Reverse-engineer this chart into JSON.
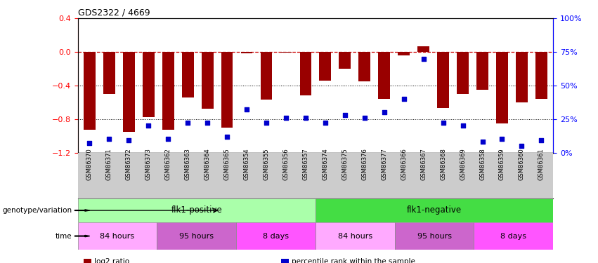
{
  "title": "GDS2322 / 4669",
  "samples": [
    "GSM86370",
    "GSM86371",
    "GSM86372",
    "GSM86373",
    "GSM86362",
    "GSM86363",
    "GSM86364",
    "GSM86365",
    "GSM86354",
    "GSM86355",
    "GSM86356",
    "GSM86357",
    "GSM86374",
    "GSM86375",
    "GSM86376",
    "GSM86377",
    "GSM86366",
    "GSM86367",
    "GSM86368",
    "GSM86369",
    "GSM86358",
    "GSM86359",
    "GSM86360",
    "GSM86361"
  ],
  "log2_ratio": [
    -0.93,
    -0.5,
    -0.95,
    -0.78,
    -0.93,
    -0.54,
    -0.68,
    -0.9,
    -0.02,
    -0.57,
    -0.01,
    -0.52,
    -0.34,
    -0.2,
    -0.35,
    -0.56,
    -0.04,
    0.07,
    -0.67,
    -0.5,
    -0.45,
    -0.85,
    -0.6,
    -0.56
  ],
  "percentile": [
    7,
    10,
    9,
    20,
    10,
    22,
    22,
    12,
    32,
    22,
    26,
    26,
    22,
    28,
    26,
    30,
    40,
    70,
    22,
    20,
    8,
    10,
    5,
    9
  ],
  "ylim_left": [
    -1.2,
    0.4
  ],
  "ylim_right": [
    0,
    100
  ],
  "yticks_left": [
    -1.2,
    -0.8,
    -0.4,
    0.0,
    0.4
  ],
  "yticks_right": [
    0,
    25,
    50,
    75,
    100
  ],
  "ytick_labels_right": [
    "0%",
    "25%",
    "50%",
    "75%",
    "100%"
  ],
  "bar_color": "#990000",
  "dot_color": "#0000cc",
  "ref_line_color": "#cc0000",
  "grid_color": "#000000",
  "main_bg": "#ffffff",
  "xtick_bg": "#cccccc",
  "genotype_flk1pos": {
    "label": "flk1-positive",
    "color": "#aaffaa",
    "start": 0,
    "end": 12
  },
  "genotype_flk1neg": {
    "label": "flk1-negative",
    "color": "#44dd44",
    "start": 12,
    "end": 24
  },
  "time_groups": [
    {
      "label": "84 hours",
      "color": "#ffaaff",
      "start": 0,
      "end": 4
    },
    {
      "label": "95 hours",
      "color": "#cc66cc",
      "start": 4,
      "end": 8
    },
    {
      "label": "8 days",
      "color": "#ff55ff",
      "start": 8,
      "end": 12
    },
    {
      "label": "84 hours",
      "color": "#ffaaff",
      "start": 12,
      "end": 16
    },
    {
      "label": "95 hours",
      "color": "#cc66cc",
      "start": 16,
      "end": 20
    },
    {
      "label": "8 days",
      "color": "#ff55ff",
      "start": 20,
      "end": 24
    }
  ],
  "legend_items": [
    {
      "label": "log2 ratio",
      "color": "#990000"
    },
    {
      "label": "percentile rank within the sample",
      "color": "#0000cc"
    }
  ]
}
